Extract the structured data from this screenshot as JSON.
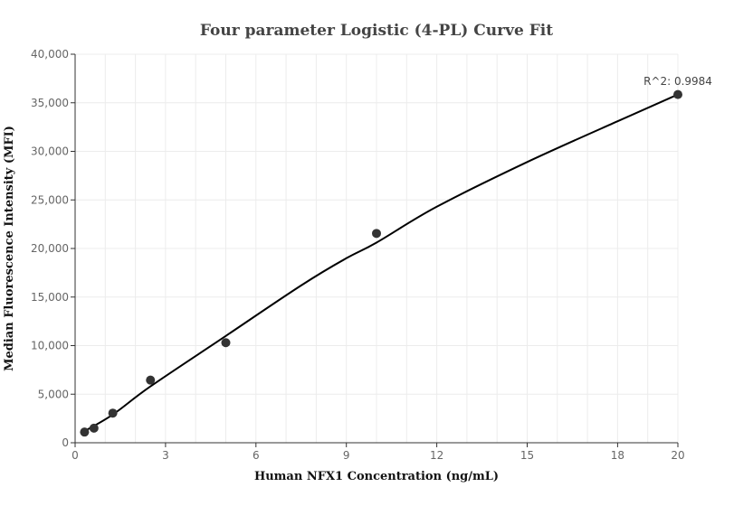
{
  "chart_data": {
    "type": "scatter",
    "title": "Four parameter Logistic (4-PL) Curve Fit",
    "xlabel": "Human NFX1 Concentration (ng/mL)",
    "ylabel": "Median Fluorescence Intensity (MFI)",
    "xlim": [
      0,
      20
    ],
    "ylim": [
      0,
      40000
    ],
    "x_ticks": [
      0,
      3,
      6,
      9,
      12,
      15,
      18,
      20
    ],
    "x_tick_labels": [
      "0",
      "3",
      "6",
      "9",
      "12",
      "15",
      "18",
      "20"
    ],
    "y_ticks": [
      0,
      5000,
      10000,
      15000,
      20000,
      25000,
      30000,
      35000,
      40000
    ],
    "y_tick_labels": [
      "0",
      "5,000",
      "10,000",
      "15,000",
      "20,000",
      "25,000",
      "30,000",
      "35,000",
      "40,000"
    ],
    "grid": true,
    "points": [
      {
        "x": 0.3125,
        "y": 1100
      },
      {
        "x": 0.625,
        "y": 1500
      },
      {
        "x": 1.25,
        "y": 3050
      },
      {
        "x": 2.5,
        "y": 6450
      },
      {
        "x": 5,
        "y": 10300
      },
      {
        "x": 10,
        "y": 21550
      },
      {
        "x": 20,
        "y": 35850
      }
    ],
    "fit_curve": [
      {
        "x": 0.3125,
        "y": 1200
      },
      {
        "x": 1.25,
        "y": 2900
      },
      {
        "x": 2.5,
        "y": 5800
      },
      {
        "x": 5,
        "y": 11000
      },
      {
        "x": 7.5,
        "y": 16200
      },
      {
        "x": 9,
        "y": 19000
      },
      {
        "x": 10,
        "y": 20600
      },
      {
        "x": 12,
        "y": 24300
      },
      {
        "x": 15,
        "y": 28900
      },
      {
        "x": 18,
        "y": 33100
      },
      {
        "x": 20,
        "y": 35850
      }
    ],
    "annotation": "R^2: 0.9984",
    "colors": {
      "points": "#333333",
      "curve": "#000000"
    }
  }
}
